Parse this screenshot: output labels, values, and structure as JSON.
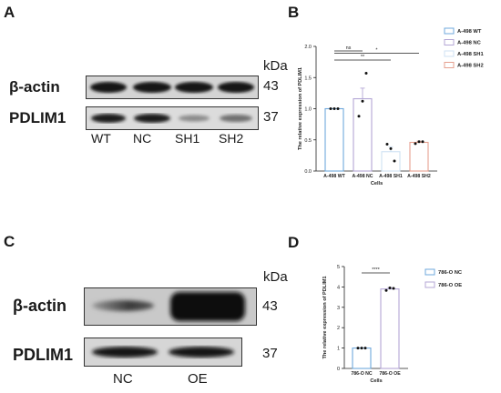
{
  "panels": {
    "a": "A",
    "b": "B",
    "c": "C",
    "d": "D"
  },
  "blot_a": {
    "kda": "kDa",
    "rows": [
      {
        "label": "β-actin",
        "mw": "43"
      },
      {
        "label": "PDLIM1",
        "mw": "37"
      }
    ],
    "lanes": [
      "WT",
      "NC",
      "SH1",
      "SH2"
    ]
  },
  "blot_c": {
    "kda": "kDa",
    "rows": [
      {
        "label": "β-actin",
        "mw": "43"
      },
      {
        "label": "PDLIM1",
        "mw": "37"
      }
    ],
    "lanes": [
      "NC",
      "OE"
    ]
  },
  "chart_data": [
    {
      "type": "bar",
      "panel": "B",
      "categories": [
        "A-498 WT",
        "A-498 NC",
        "A-498 SH1",
        "A-498 SH2"
      ],
      "values": [
        1.0,
        1.16,
        0.31,
        0.46
      ],
      "errors": [
        0,
        0.17,
        0.08,
        0.02
      ],
      "points": [
        [
          1.0,
          1.0,
          1.0
        ],
        [
          0.88,
          1.12,
          1.57
        ],
        [
          0.43,
          0.36,
          0.16
        ],
        [
          0.44,
          0.47,
          0.47
        ]
      ],
      "colors": [
        "#6fa8dc",
        "#b4a7d6",
        "#cfe2f3",
        "#e6a08f"
      ],
      "ylabel": "The relative expression of PDLIM1",
      "xlabel": "Cells",
      "ylim": [
        0,
        2.0
      ],
      "yticks": [
        "0.0",
        "0.5",
        "1.0",
        "1.5",
        "2.0"
      ],
      "legend": [
        "A-498 WT",
        "A-498 NC",
        "A-498 SH1",
        "A-498 SH2"
      ],
      "legend_position": "right",
      "significance": [
        {
          "from": 0,
          "to": 1,
          "label": "ns"
        },
        {
          "from": 0,
          "to": 2,
          "label": "**"
        },
        {
          "from": 0,
          "to": 3,
          "label": "*"
        }
      ]
    },
    {
      "type": "bar",
      "panel": "D",
      "categories": [
        "786-O NC",
        "786-O OE"
      ],
      "values": [
        1.0,
        3.9
      ],
      "errors": [
        0,
        0.07
      ],
      "points": [
        [
          1.0,
          1.0,
          1.0
        ],
        [
          3.83,
          3.95,
          3.93
        ]
      ],
      "colors": [
        "#6fa8dc",
        "#b4a7d6"
      ],
      "ylabel": "The relative expression of PDLIM1",
      "xlabel": "Cells",
      "ylim": [
        0,
        5
      ],
      "yticks": [
        "0",
        "1",
        "2",
        "3",
        "4",
        "5"
      ],
      "legend": [
        "786-O NC",
        "786-O OE"
      ],
      "legend_position": "right",
      "significance": [
        {
          "from": 0,
          "to": 1,
          "label": "****"
        }
      ]
    }
  ]
}
